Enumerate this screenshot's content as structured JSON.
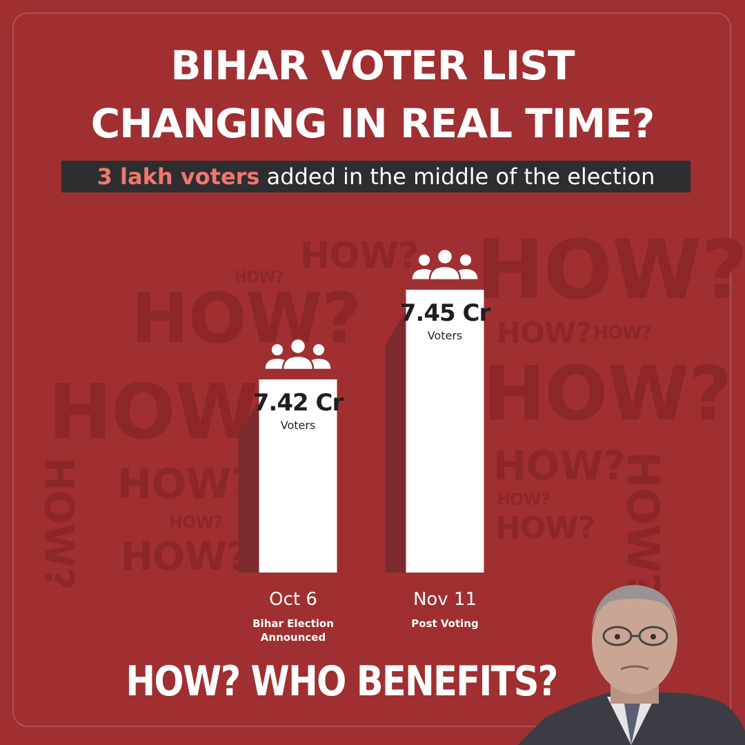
{
  "title_line1": "BIHAR VOTER LIST",
  "title_line2": "CHANGING IN REAL TIME?",
  "subtitle_highlight": "3 lakh voters",
  "subtitle_rest": " added in the middle of the election",
  "background_word": "HOW?",
  "bottom_text": "HOW? WHO BENEFITS?",
  "colors": {
    "background": "#a02f31",
    "bar": "#ffffff",
    "bar_shadow": "#7d2a2e",
    "highlight": "#f0776f",
    "subtitle_bg": "#2e2e30"
  },
  "icons": {
    "bar_top": "people-group-icon"
  },
  "chart_data": {
    "type": "bar",
    "categories": [
      "Oct 6",
      "Nov 11"
    ],
    "category_notes": [
      "Bihar Election Announced",
      "Post Voting"
    ],
    "values": [
      7.42,
      7.45
    ],
    "value_labels": [
      "7.42 Cr",
      "7.45 Cr"
    ],
    "unit_label": "Voters",
    "title": "",
    "xlabel": "",
    "ylabel": ""
  }
}
